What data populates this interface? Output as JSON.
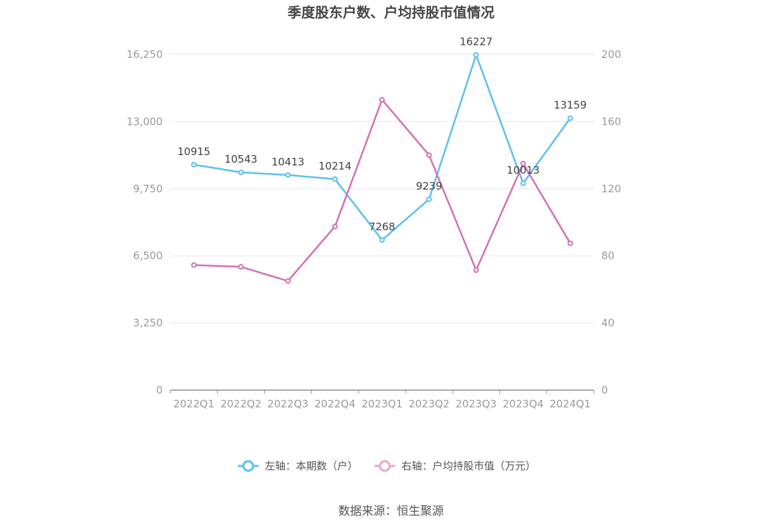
{
  "chart_data": {
    "type": "line",
    "title": "季度股东户数、户均持股市值情况",
    "categories": [
      "2022Q1",
      "2022Q2",
      "2022Q3",
      "2022Q4",
      "2023Q1",
      "2023Q2",
      "2023Q3",
      "2023Q4",
      "2024Q1"
    ],
    "series": [
      {
        "name": "左轴：本期数（户）",
        "axis": "left",
        "color": "#5bbfee",
        "values": [
          10915,
          10543,
          10413,
          10214,
          7268,
          9239,
          16227,
          10013,
          13159
        ],
        "show_labels": true
      },
      {
        "name": "右轴：户均持股市值（万元）",
        "axis": "right",
        "color": "#d46fb3",
        "values": [
          74.5,
          73.5,
          65,
          97.5,
          173,
          140,
          71.5,
          135,
          87.5
        ],
        "show_labels": false
      }
    ],
    "y_left": {
      "range": [
        0,
        16250
      ],
      "ticks": [
        0,
        3250,
        6500,
        9750,
        13000,
        16250
      ],
      "tick_labels": [
        "0",
        "3,250",
        "6,500",
        "9,750",
        "13,000",
        "16,250"
      ]
    },
    "y_right": {
      "range": [
        0,
        200
      ],
      "ticks": [
        0,
        40,
        80,
        120,
        160,
        200
      ],
      "tick_labels": [
        "0",
        "40",
        "80",
        "120",
        "160",
        "200"
      ]
    },
    "grid": true,
    "legend_position": "bottom"
  },
  "source_text": "数据来源：恒生聚源",
  "colors": {
    "grid": "#e3e6f0",
    "axis": "#8c8ca0",
    "legend_right_color": "#e8a6cf"
  }
}
